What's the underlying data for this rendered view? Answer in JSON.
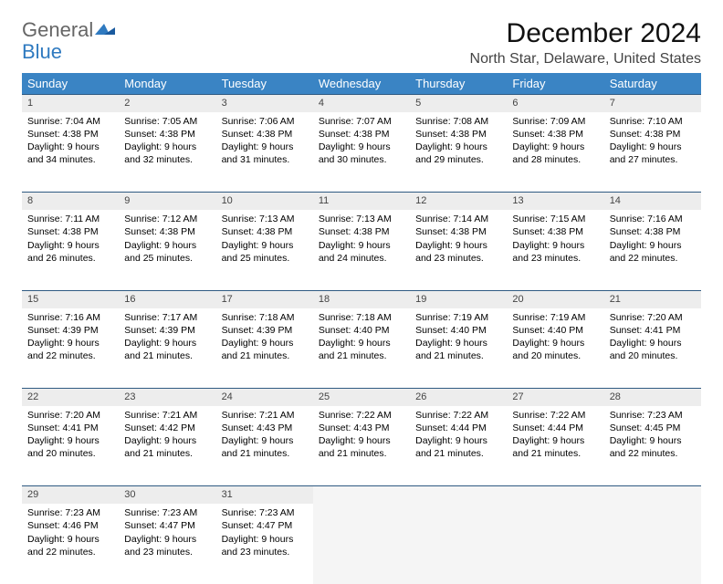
{
  "logo": {
    "part1": "General",
    "part2": "Blue"
  },
  "title": "December 2024",
  "location": "North Star, Delaware, United States",
  "header_row_color": "#3a84c4",
  "daynum_bg": "#ededed",
  "rule_color": "#2f5a82",
  "weekdays": [
    "Sunday",
    "Monday",
    "Tuesday",
    "Wednesday",
    "Thursday",
    "Friday",
    "Saturday"
  ],
  "weeks": [
    [
      {
        "n": "1",
        "sr": "7:04 AM",
        "ss": "4:38 PM",
        "dl": "9 hours and 34 minutes."
      },
      {
        "n": "2",
        "sr": "7:05 AM",
        "ss": "4:38 PM",
        "dl": "9 hours and 32 minutes."
      },
      {
        "n": "3",
        "sr": "7:06 AM",
        "ss": "4:38 PM",
        "dl": "9 hours and 31 minutes."
      },
      {
        "n": "4",
        "sr": "7:07 AM",
        "ss": "4:38 PM",
        "dl": "9 hours and 30 minutes."
      },
      {
        "n": "5",
        "sr": "7:08 AM",
        "ss": "4:38 PM",
        "dl": "9 hours and 29 minutes."
      },
      {
        "n": "6",
        "sr": "7:09 AM",
        "ss": "4:38 PM",
        "dl": "9 hours and 28 minutes."
      },
      {
        "n": "7",
        "sr": "7:10 AM",
        "ss": "4:38 PM",
        "dl": "9 hours and 27 minutes."
      }
    ],
    [
      {
        "n": "8",
        "sr": "7:11 AM",
        "ss": "4:38 PM",
        "dl": "9 hours and 26 minutes."
      },
      {
        "n": "9",
        "sr": "7:12 AM",
        "ss": "4:38 PM",
        "dl": "9 hours and 25 minutes."
      },
      {
        "n": "10",
        "sr": "7:13 AM",
        "ss": "4:38 PM",
        "dl": "9 hours and 25 minutes."
      },
      {
        "n": "11",
        "sr": "7:13 AM",
        "ss": "4:38 PM",
        "dl": "9 hours and 24 minutes."
      },
      {
        "n": "12",
        "sr": "7:14 AM",
        "ss": "4:38 PM",
        "dl": "9 hours and 23 minutes."
      },
      {
        "n": "13",
        "sr": "7:15 AM",
        "ss": "4:38 PM",
        "dl": "9 hours and 23 minutes."
      },
      {
        "n": "14",
        "sr": "7:16 AM",
        "ss": "4:38 PM",
        "dl": "9 hours and 22 minutes."
      }
    ],
    [
      {
        "n": "15",
        "sr": "7:16 AM",
        "ss": "4:39 PM",
        "dl": "9 hours and 22 minutes."
      },
      {
        "n": "16",
        "sr": "7:17 AM",
        "ss": "4:39 PM",
        "dl": "9 hours and 21 minutes."
      },
      {
        "n": "17",
        "sr": "7:18 AM",
        "ss": "4:39 PM",
        "dl": "9 hours and 21 minutes."
      },
      {
        "n": "18",
        "sr": "7:18 AM",
        "ss": "4:40 PM",
        "dl": "9 hours and 21 minutes."
      },
      {
        "n": "19",
        "sr": "7:19 AM",
        "ss": "4:40 PM",
        "dl": "9 hours and 21 minutes."
      },
      {
        "n": "20",
        "sr": "7:19 AM",
        "ss": "4:40 PM",
        "dl": "9 hours and 20 minutes."
      },
      {
        "n": "21",
        "sr": "7:20 AM",
        "ss": "4:41 PM",
        "dl": "9 hours and 20 minutes."
      }
    ],
    [
      {
        "n": "22",
        "sr": "7:20 AM",
        "ss": "4:41 PM",
        "dl": "9 hours and 20 minutes."
      },
      {
        "n": "23",
        "sr": "7:21 AM",
        "ss": "4:42 PM",
        "dl": "9 hours and 21 minutes."
      },
      {
        "n": "24",
        "sr": "7:21 AM",
        "ss": "4:43 PM",
        "dl": "9 hours and 21 minutes."
      },
      {
        "n": "25",
        "sr": "7:22 AM",
        "ss": "4:43 PM",
        "dl": "9 hours and 21 minutes."
      },
      {
        "n": "26",
        "sr": "7:22 AM",
        "ss": "4:44 PM",
        "dl": "9 hours and 21 minutes."
      },
      {
        "n": "27",
        "sr": "7:22 AM",
        "ss": "4:44 PM",
        "dl": "9 hours and 21 minutes."
      },
      {
        "n": "28",
        "sr": "7:23 AM",
        "ss": "4:45 PM",
        "dl": "9 hours and 22 minutes."
      }
    ],
    [
      {
        "n": "29",
        "sr": "7:23 AM",
        "ss": "4:46 PM",
        "dl": "9 hours and 22 minutes."
      },
      {
        "n": "30",
        "sr": "7:23 AM",
        "ss": "4:47 PM",
        "dl": "9 hours and 23 minutes."
      },
      {
        "n": "31",
        "sr": "7:23 AM",
        "ss": "4:47 PM",
        "dl": "9 hours and 23 minutes."
      },
      null,
      null,
      null,
      null
    ]
  ],
  "labels": {
    "sunrise": "Sunrise:",
    "sunset": "Sunset:",
    "daylight": "Daylight:"
  }
}
